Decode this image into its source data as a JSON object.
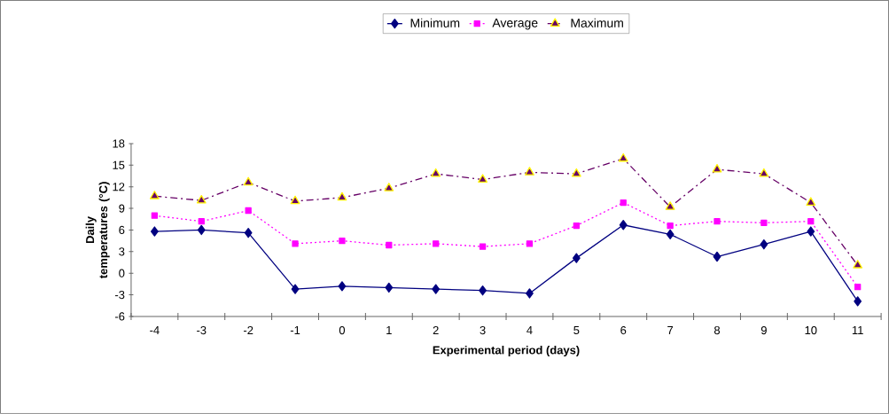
{
  "chart_data": {
    "type": "line",
    "xlabel": "Experimental period (days)",
    "ylabel": "Daily temperatures (°C)",
    "categories": [
      "-4",
      "-3",
      "-2",
      "-1",
      "0",
      "1",
      "2",
      "3",
      "4",
      "5",
      "6",
      "7",
      "8",
      "9",
      "10",
      "11"
    ],
    "series": [
      {
        "name": "Minimum",
        "color": "#000080",
        "marker": "diamond",
        "line_style": "solid",
        "values": [
          5.8,
          6.0,
          5.6,
          -2.2,
          -1.8,
          -2.0,
          -2.2,
          -2.4,
          -2.8,
          2.1,
          6.7,
          5.4,
          2.3,
          4.0,
          5.8,
          -3.9
        ]
      },
      {
        "name": "Average",
        "color": "#ff00ff",
        "marker": "square",
        "line_style": "dotted",
        "values": [
          8.0,
          7.2,
          8.7,
          4.1,
          4.5,
          3.9,
          4.1,
          3.7,
          4.1,
          6.6,
          9.8,
          6.6,
          7.2,
          7.0,
          7.2,
          -1.9
        ]
      },
      {
        "name": "Maximum",
        "color": "#660066",
        "marker": "triangle",
        "line_style": "dashdot",
        "values": [
          10.7,
          10.1,
          12.6,
          10.0,
          10.5,
          11.8,
          13.8,
          13.0,
          14.0,
          13.8,
          15.9,
          9.2,
          14.4,
          13.8,
          9.8,
          1.1
        ]
      }
    ],
    "ylim": [
      -6,
      18
    ],
    "yticks": [
      -6,
      -3,
      0,
      3,
      6,
      9,
      12,
      15,
      18
    ],
    "grid": false,
    "legend": "top"
  }
}
